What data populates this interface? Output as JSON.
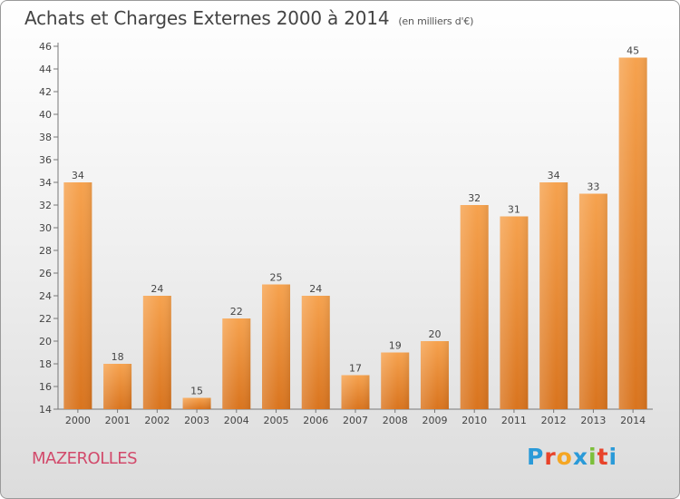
{
  "header": {
    "title": "Achats et Charges Externes 2000 à 2014",
    "unit": "(en milliers d'€)"
  },
  "footer": {
    "commune": "MAZEROLLES",
    "brand_letters": [
      "P",
      "r",
      "o",
      "x",
      "i",
      "t",
      "i"
    ],
    "brand_colors": [
      "#2a9ad8",
      "#e8432a",
      "#f5a623",
      "#2a9ad8",
      "#7cbf3a",
      "#e8432a",
      "#2a9ad8"
    ]
  },
  "chart_data": {
    "type": "bar",
    "categories": [
      "2000",
      "2001",
      "2002",
      "2003",
      "2004",
      "2005",
      "2006",
      "2007",
      "2008",
      "2009",
      "2010",
      "2011",
      "2012",
      "2013",
      "2014"
    ],
    "values": [
      34,
      18,
      24,
      15,
      22,
      25,
      24,
      17,
      19,
      20,
      32,
      31,
      34,
      33,
      45
    ],
    "ylim": [
      14,
      46
    ],
    "yticks": [
      14,
      16,
      18,
      20,
      22,
      24,
      26,
      28,
      30,
      32,
      34,
      36,
      38,
      40,
      42,
      44,
      46
    ],
    "grid": false,
    "bar_color_top": "#f6a24e",
    "bar_color_bottom": "#d9741e"
  }
}
